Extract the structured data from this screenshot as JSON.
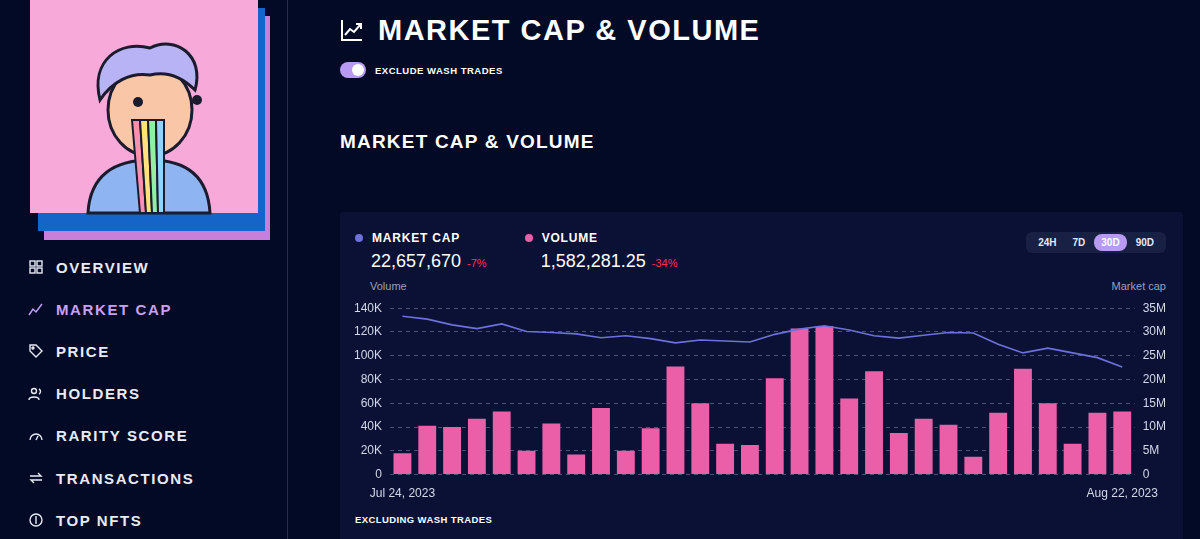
{
  "sidebar": {
    "menu": [
      "OVERVIEW",
      "MARKET CAP",
      "PRICE",
      "HOLDERS",
      "RARITY SCORE",
      "TRANSACTIONS",
      "TOP NFTS"
    ],
    "active": "MARKET CAP"
  },
  "header": {
    "title": "MARKET CAP & VOLUME",
    "toggle": "EXCLUDE WASH TRADES"
  },
  "section_title": "MARKET CAP & VOLUME",
  "ranges": {
    "options": [
      "24H",
      "7D",
      "30D",
      "90D"
    ],
    "active": "30D"
  },
  "footnote": "EXCLUDING WASH TRADES",
  "chart_data": {
    "type": "bar",
    "categories": [
      "Jul 24, 2023",
      null,
      null,
      null,
      null,
      null,
      null,
      null,
      null,
      null,
      null,
      null,
      null,
      null,
      null,
      null,
      null,
      null,
      null,
      null,
      null,
      null,
      null,
      null,
      null,
      null,
      null,
      null,
      null,
      "Aug 22, 2023"
    ],
    "ylabel": "Volume",
    "y2label": "Market cap",
    "ylim": [
      0,
      140000
    ],
    "yticks": [
      0,
      {
        "value": 20000,
        "label": "20K"
      },
      {
        "value": 40000,
        "label": "40K"
      },
      {
        "value": 60000,
        "label": "60K"
      },
      {
        "value": 80000,
        "label": "80K"
      },
      {
        "value": 100000,
        "label": "100K"
      },
      {
        "value": 120000,
        "label": "120K"
      },
      {
        "value": 140000,
        "label": "140K"
      }
    ],
    "y2lim": [
      0,
      35000000
    ],
    "y2ticks": [
      0,
      {
        "value": 5000000,
        "label": "5M"
      },
      {
        "value": 10000000,
        "label": "10M"
      },
      {
        "value": 15000000,
        "label": "15M"
      },
      {
        "value": 20000000,
        "label": "20M"
      },
      {
        "value": 25000000,
        "label": "25M"
      },
      {
        "value": 30000000,
        "label": "30M"
      },
      {
        "value": 35000000,
        "label": "35M"
      }
    ],
    "grid": true,
    "legend": "top-left",
    "series": [
      {
        "name": "MARKET CAP",
        "type": "line",
        "axis": "y2",
        "color": "#6e70dc",
        "headline": "22,657,670",
        "change": "-7%",
        "values": [
          33300000,
          32700000,
          31500000,
          30700000,
          31700000,
          30100000,
          29900000,
          29600000,
          28800000,
          29200000,
          28600000,
          27700000,
          28300000,
          28100000,
          27900000,
          29500000,
          30600000,
          31300000,
          30400000,
          29200000,
          28700000,
          29300000,
          29900000,
          29800000,
          27400000,
          25600000,
          26600000,
          25600000,
          24600000,
          22657670
        ]
      },
      {
        "name": "VOLUME",
        "type": "bar",
        "color": "#eb5ea8",
        "headline": "1,582,281.25",
        "change": "-34%",
        "values": [
          18000,
          41000,
          40000,
          47000,
          53000,
          20000,
          43000,
          17000,
          56000,
          20000,
          39000,
          91000,
          60000,
          26000,
          25000,
          81000,
          123000,
          125000,
          64000,
          87000,
          35000,
          47000,
          42000,
          15000,
          52000,
          89000,
          60000,
          26000,
          52000,
          53000
        ]
      }
    ]
  }
}
